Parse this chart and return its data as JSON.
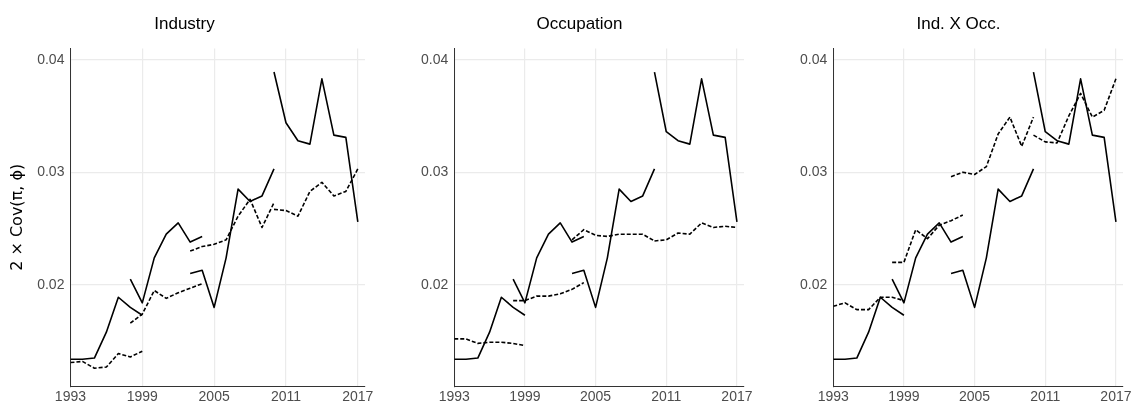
{
  "chart_data": [
    {
      "type": "line",
      "title": "Industry",
      "ylabel": "2 × Cov(π, ϕ)",
      "xlim": [
        1993,
        2017.6
      ],
      "xticks": [
        1993,
        1999,
        2005,
        2011,
        2017
      ],
      "ylim": [
        0.011,
        0.041
      ],
      "yticks": [
        0.02,
        0.03,
        0.04
      ],
      "grid": true,
      "legend": false,
      "series": [
        {
          "color": "#000000",
          "line_style": "solid",
          "x": [
            1993,
            1994,
            1995,
            1996,
            1997,
            1998,
            1999
          ],
          "values": [
            0.0134,
            0.0134,
            0.0135,
            0.0158,
            0.0189,
            0.018,
            0.0173
          ]
        },
        {
          "color": "#000000",
          "line_style": "solid",
          "x": [
            1998,
            1999,
            2000,
            2001,
            2002,
            2003,
            2004
          ],
          "values": [
            0.0205,
            0.0184,
            0.0224,
            0.0245,
            0.0255,
            0.0238,
            0.0243
          ]
        },
        {
          "color": "#000000",
          "line_style": "solid",
          "x": [
            2003,
            2004,
            2005,
            2006,
            2007,
            2008,
            2009,
            2010
          ],
          "values": [
            0.021,
            0.0213,
            0.018,
            0.0224,
            0.0285,
            0.0274,
            0.0279,
            0.0303
          ]
        },
        {
          "color": "#000000",
          "line_style": "solid",
          "x": [
            2010,
            2011,
            2012,
            2013,
            2014,
            2015,
            2016,
            2017
          ],
          "values": [
            0.0389,
            0.0344,
            0.0328,
            0.0325,
            0.0383,
            0.0333,
            0.0331,
            0.0256
          ]
        },
        {
          "color": "#000000",
          "line_style": "dashed",
          "x": [
            1993,
            1994,
            1995,
            1996,
            1997,
            1998,
            1999
          ],
          "values": [
            0.0131,
            0.0132,
            0.0126,
            0.0127,
            0.0139,
            0.0136,
            0.0141
          ]
        },
        {
          "color": "#000000",
          "line_style": "dashed",
          "x": [
            1998,
            1999,
            2000,
            2001,
            2002,
            2003,
            2004
          ],
          "values": [
            0.0166,
            0.0174,
            0.0195,
            0.0188,
            0.0193,
            0.0197,
            0.0201
          ]
        },
        {
          "color": "#000000",
          "line_style": "dashed",
          "x": [
            2003,
            2004,
            2005,
            2006,
            2007,
            2008,
            2009,
            2010
          ],
          "values": [
            0.023,
            0.0234,
            0.0236,
            0.024,
            0.0261,
            0.0276,
            0.0251,
            0.0273
          ]
        },
        {
          "color": "#000000",
          "line_style": "dashed",
          "x": [
            2010,
            2011,
            2012,
            2013,
            2014,
            2015,
            2016,
            2017
          ],
          "values": [
            0.0267,
            0.0266,
            0.0261,
            0.0283,
            0.0291,
            0.0279,
            0.0283,
            0.0303
          ]
        }
      ]
    },
    {
      "type": "line",
      "title": "Occupation",
      "xlim": [
        1993,
        2017.6
      ],
      "xticks": [
        1993,
        1999,
        2005,
        2011,
        2017
      ],
      "ylim": [
        0.011,
        0.041
      ],
      "yticks": [
        0.02,
        0.03,
        0.04
      ],
      "grid": true,
      "legend": false,
      "series": [
        {
          "color": "#000000",
          "line_style": "solid",
          "x": [
            1993,
            1994,
            1995,
            1996,
            1997,
            1998,
            1999
          ],
          "values": [
            0.0134,
            0.0134,
            0.0135,
            0.0158,
            0.0189,
            0.018,
            0.0173
          ]
        },
        {
          "color": "#000000",
          "line_style": "solid",
          "x": [
            1998,
            1999,
            2000,
            2001,
            2002,
            2003,
            2004
          ],
          "values": [
            0.0205,
            0.0184,
            0.0224,
            0.0245,
            0.0255,
            0.0238,
            0.0243
          ]
        },
        {
          "color": "#000000",
          "line_style": "solid",
          "x": [
            2003,
            2004,
            2005,
            2006,
            2007,
            2008,
            2009,
            2010
          ],
          "values": [
            0.021,
            0.0213,
            0.018,
            0.0224,
            0.0285,
            0.0274,
            0.0279,
            0.0303
          ]
        },
        {
          "color": "#000000",
          "line_style": "solid",
          "x": [
            2010,
            2011,
            2012,
            2013,
            2014,
            2015,
            2016,
            2017
          ],
          "values": [
            0.0389,
            0.0336,
            0.0328,
            0.0325,
            0.0383,
            0.0333,
            0.0331,
            0.0256
          ]
        },
        {
          "color": "#000000",
          "line_style": "dashed",
          "x": [
            1993,
            1994,
            1995,
            1996,
            1997,
            1998,
            1999
          ],
          "values": [
            0.0152,
            0.0152,
            0.0148,
            0.0149,
            0.0149,
            0.0148,
            0.0146
          ]
        },
        {
          "color": "#000000",
          "line_style": "dashed",
          "x": [
            1998,
            1999,
            2000,
            2001,
            2002,
            2003,
            2004
          ],
          "values": [
            0.0186,
            0.0186,
            0.019,
            0.019,
            0.0192,
            0.0196,
            0.0202
          ]
        },
        {
          "color": "#000000",
          "line_style": "dashed",
          "x": [
            2003,
            2004,
            2005,
            2006,
            2007,
            2008,
            2009,
            2010
          ],
          "values": [
            0.024,
            0.0249,
            0.0244,
            0.0243,
            0.0245,
            0.0245,
            0.0245,
            0.0239
          ]
        },
        {
          "color": "#000000",
          "line_style": "dashed",
          "x": [
            2010,
            2011,
            2012,
            2013,
            2014,
            2015,
            2016,
            2017
          ],
          "values": [
            0.0239,
            0.024,
            0.0246,
            0.0245,
            0.0255,
            0.0251,
            0.0252,
            0.0251
          ]
        }
      ]
    },
    {
      "type": "line",
      "title": "Ind. X Occ.",
      "xlim": [
        1993,
        2017.6
      ],
      "xticks": [
        1993,
        1999,
        2005,
        2011,
        2017
      ],
      "ylim": [
        0.011,
        0.041
      ],
      "yticks": [
        0.02,
        0.03,
        0.04
      ],
      "grid": true,
      "legend": false,
      "series": [
        {
          "color": "#000000",
          "line_style": "solid",
          "x": [
            1993,
            1994,
            1995,
            1996,
            1997,
            1998,
            1999
          ],
          "values": [
            0.0134,
            0.0134,
            0.0135,
            0.0158,
            0.0189,
            0.018,
            0.0173
          ]
        },
        {
          "color": "#000000",
          "line_style": "solid",
          "x": [
            1998,
            1999,
            2000,
            2001,
            2002,
            2003,
            2004
          ],
          "values": [
            0.0205,
            0.0184,
            0.0224,
            0.0245,
            0.0255,
            0.0238,
            0.0243
          ]
        },
        {
          "color": "#000000",
          "line_style": "solid",
          "x": [
            2003,
            2004,
            2005,
            2006,
            2007,
            2008,
            2009,
            2010
          ],
          "values": [
            0.021,
            0.0213,
            0.018,
            0.0224,
            0.0285,
            0.0274,
            0.0279,
            0.0303
          ]
        },
        {
          "color": "#000000",
          "line_style": "solid",
          "x": [
            2010,
            2011,
            2012,
            2013,
            2014,
            2015,
            2016,
            2017
          ],
          "values": [
            0.0389,
            0.0336,
            0.0328,
            0.0325,
            0.0383,
            0.0333,
            0.0331,
            0.0256
          ]
        },
        {
          "color": "#000000",
          "line_style": "dashed",
          "x": [
            1993,
            1994,
            1995,
            1996,
            1997,
            1998,
            1999
          ],
          "values": [
            0.0181,
            0.0184,
            0.0178,
            0.0178,
            0.0189,
            0.0189,
            0.0186
          ]
        },
        {
          "color": "#000000",
          "line_style": "dashed",
          "x": [
            1998,
            1999,
            2000,
            2001,
            2002,
            2003,
            2004
          ],
          "values": [
            0.022,
            0.022,
            0.0249,
            0.0241,
            0.0253,
            0.0257,
            0.0262
          ]
        },
        {
          "color": "#000000",
          "line_style": "dashed",
          "x": [
            2003,
            2004,
            2005,
            2006,
            2007,
            2008,
            2009,
            2010
          ],
          "values": [
            0.0296,
            0.03,
            0.0298,
            0.0305,
            0.0334,
            0.0349,
            0.0323,
            0.0349
          ]
        },
        {
          "color": "#000000",
          "line_style": "dashed",
          "x": [
            2010,
            2011,
            2012,
            2013,
            2014,
            2015,
            2016,
            2017
          ],
          "values": [
            0.0333,
            0.0327,
            0.0326,
            0.035,
            0.037,
            0.0349,
            0.0355,
            0.0383
          ]
        }
      ]
    }
  ]
}
